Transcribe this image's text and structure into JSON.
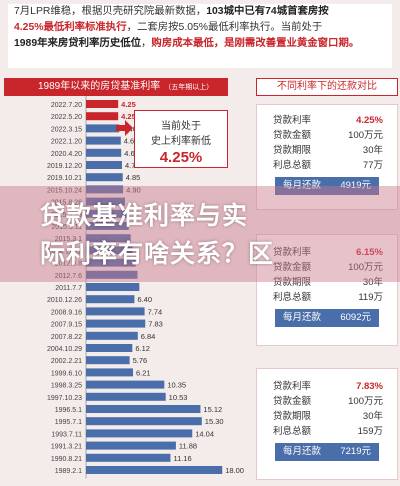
{
  "intro": {
    "line1a": "7月LPR维稳，根据贝壳研究院最新数据，",
    "line1b": "103城中已有74城首套房按",
    "line2a": "4.25%最低利率标准执行",
    "line2b": "，二套房按5.05%最低利率执行。当前处于",
    "line3a": "1989年来房贷利率历史低位",
    "line3b": "，",
    "line3c": "购房成本最低，是刚需改善置业黄金窗口期。"
  },
  "left_panel": {
    "title": "1989年以来的房贷基准利率",
    "note": "（五年期以上）"
  },
  "callout": {
    "line1": "当前处于",
    "line2": "史上利率新低",
    "value": "4.25%"
  },
  "chart_data": {
    "type": "bar",
    "title": "1989年以来的房贷基准利率",
    "categories": [
      "2022.7.20",
      "2022.5.20",
      "2022.3.15",
      "2022.1.20",
      "2020.4.20",
      "2019.12.20",
      "2019.10.21",
      "2015.10.24",
      "2015.8.26",
      "2015.6.28",
      "2015.5.11",
      "2015.3.1",
      "2014.11.22",
      "2012.6.8",
      "2012.7.6",
      "2011.7.7",
      "2010.12.26",
      "2008.9.16",
      "2007.9.15",
      "2007.8.22",
      "2004.10.29",
      "2002.2.21",
      "1999.6.10",
      "1998.3.25",
      "1997.10.23",
      "1996.5.1",
      "1995.7.1",
      "1993.7.11",
      "1991.3.21",
      "1990.8.21",
      "1989.2.1"
    ],
    "values": [
      4.25,
      4.25,
      4.4,
      4.6,
      4.65,
      4.75,
      4.85,
      4.9,
      5.15,
      5.4,
      5.65,
      5.9,
      6.15,
      6.55,
      6.8,
      7.05,
      6.4,
      7.74,
      7.83,
      6.84,
      6.12,
      5.76,
      6.21,
      10.35,
      10.53,
      15.12,
      15.3,
      14.04,
      11.88,
      11.16,
      18.0
    ],
    "labels": [
      "4.25",
      "4.25",
      "4.40",
      "4.60",
      "4.65",
      "4.75",
      "4.85",
      "4.90",
      "",
      "",
      "",
      "",
      "",
      "",
      "",
      "",
      "6.40",
      "7.74",
      "7.83",
      "6.84",
      "6.12",
      "5.76",
      "6.21",
      "10.35",
      "10.53",
      "15.12",
      "15.30",
      "14.04",
      "11.88",
      "11.16",
      "18.00"
    ],
    "highlight_indices": [
      0,
      1
    ],
    "colors": {
      "normal": "#4a6ea9",
      "highlight": "#c8262b"
    }
  },
  "right_panel": {
    "title": "不同利率下的还款对比"
  },
  "cards": [
    {
      "rate_label": "贷款利率",
      "rate": "4.25%",
      "amount_label": "贷款金额",
      "amount": "100万元",
      "term_label": "贷款期限",
      "term": "30年",
      "interest_label": "利息总额",
      "interest": "77万",
      "pay_label": "每月还款",
      "pay": "4919元"
    },
    {
      "rate_label": "贷款利率",
      "rate": "6.15%",
      "amount_label": "贷款金额",
      "amount": "100万元",
      "term_label": "贷款期限",
      "term": "30年",
      "interest_label": "利息总额",
      "interest": "119万",
      "pay_label": "每月还款",
      "pay": "6092元"
    },
    {
      "rate_label": "贷款利率",
      "rate": "7.83%",
      "amount_label": "贷款金额",
      "amount": "100万元",
      "term_label": "贷款期限",
      "term": "30年",
      "interest_label": "利息总额",
      "interest": "159万",
      "pay_label": "每月还款",
      "pay": "7219元"
    }
  ],
  "overlay": {
    "line1": "贷款基准利率与实",
    "line2": "际利率有啥关系？区"
  }
}
